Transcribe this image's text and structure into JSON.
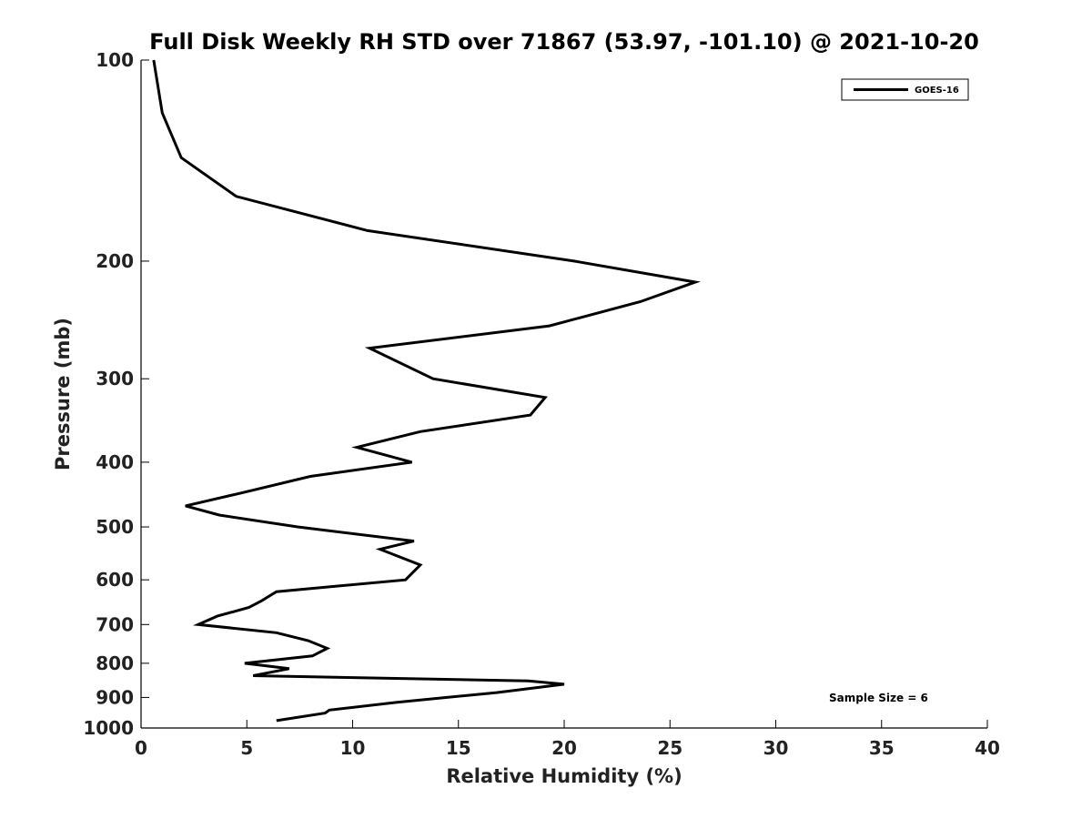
{
  "chart_data": {
    "type": "line",
    "title": "Full Disk Weekly RH STD over 71867 (53.97, -101.10) @ 2021-10-20",
    "xlabel": "Relative Humidity (%)",
    "ylabel": "Pressure (mb)",
    "xlim": [
      0,
      40
    ],
    "ylim": [
      1000,
      100
    ],
    "yscale": "log",
    "y_reversed": true,
    "grid": false,
    "legend_position": "top-right",
    "x_ticks": [
      "0",
      "5",
      "10",
      "15",
      "20",
      "25",
      "30",
      "35",
      "40"
    ],
    "y_ticks": [
      "100",
      "200",
      "300",
      "400",
      "500",
      "600",
      "700",
      "800",
      "900",
      "1000"
    ],
    "annotation": "Sample Size = 6",
    "series": [
      {
        "name": "GOES-16",
        "color": "#000000",
        "points": [
          [
            0.6,
            100
          ],
          [
            1.0,
            120
          ],
          [
            1.9,
            140
          ],
          [
            4.5,
            160
          ],
          [
            10.7,
            180
          ],
          [
            20.5,
            200
          ],
          [
            26.2,
            215
          ],
          [
            23.6,
            230
          ],
          [
            19.3,
            250
          ],
          [
            10.8,
            270
          ],
          [
            13.8,
            300
          ],
          [
            19.1,
            320
          ],
          [
            18.4,
            340
          ],
          [
            13.2,
            360
          ],
          [
            10.2,
            380
          ],
          [
            12.8,
            400
          ],
          [
            8.0,
            420
          ],
          [
            4.7,
            445
          ],
          [
            2.1,
            465
          ],
          [
            3.7,
            480
          ],
          [
            7.4,
            500
          ],
          [
            12.9,
            525
          ],
          [
            11.3,
            540
          ],
          [
            13.2,
            570
          ],
          [
            12.5,
            600
          ],
          [
            6.4,
            625
          ],
          [
            5.7,
            645
          ],
          [
            5.1,
            660
          ],
          [
            3.6,
            680
          ],
          [
            2.7,
            700
          ],
          [
            6.4,
            720
          ],
          [
            7.9,
            740
          ],
          [
            8.8,
            760
          ],
          [
            8.1,
            780
          ],
          [
            4.9,
            800
          ],
          [
            7.0,
            815
          ],
          [
            5.3,
            835
          ],
          [
            18.3,
            850
          ],
          [
            20.0,
            860
          ],
          [
            16.8,
            885
          ],
          [
            12.1,
            915
          ],
          [
            8.9,
            940
          ],
          [
            8.7,
            950
          ],
          [
            6.4,
            975
          ]
        ]
      }
    ]
  }
}
